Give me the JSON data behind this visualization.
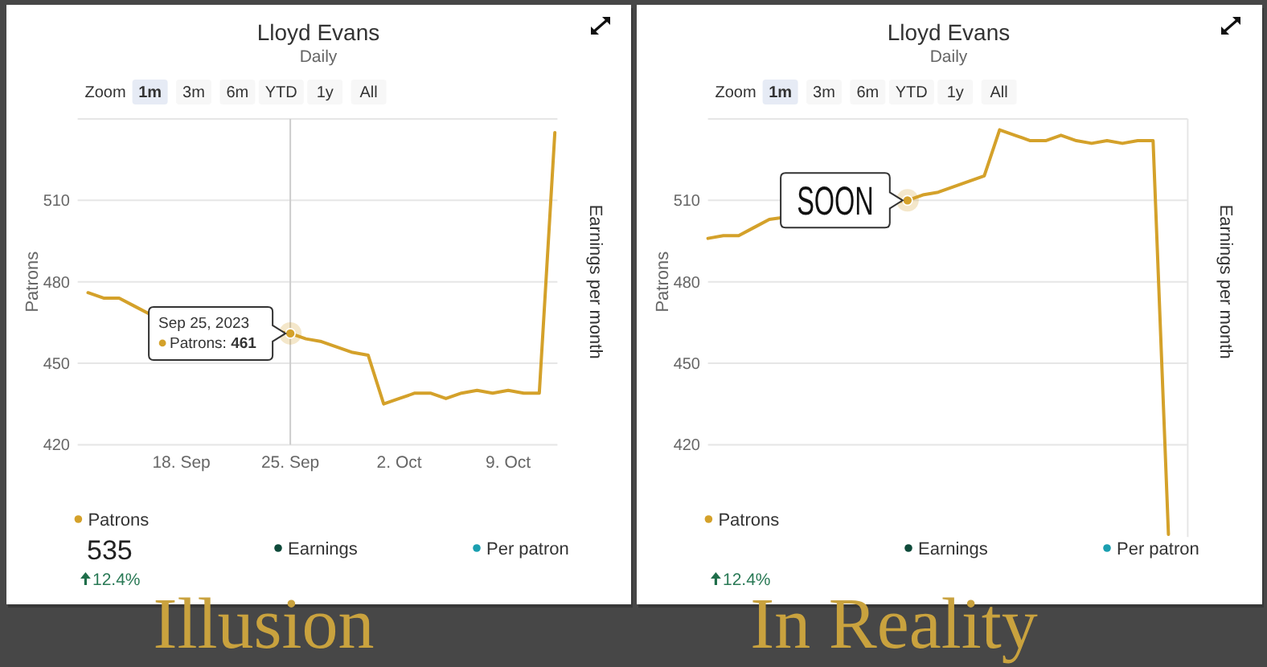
{
  "chart_data": [
    {
      "type": "line",
      "title": "Lloyd Evans",
      "subtitle": "Daily",
      "ylabel": "Patrons",
      "y2label": "Earnings per month",
      "x": [
        "2023-09-12",
        "2023-09-13",
        "2023-09-14",
        "2023-09-15",
        "2023-09-16",
        "2023-09-17",
        "2023-09-18",
        "2023-09-19",
        "2023-09-20",
        "2023-09-21",
        "2023-09-22",
        "2023-09-23",
        "2023-09-24",
        "2023-09-25",
        "2023-09-26",
        "2023-09-27",
        "2023-09-28",
        "2023-09-29",
        "2023-09-30",
        "2023-10-01",
        "2023-10-02",
        "2023-10-03",
        "2023-10-04",
        "2023-10-05",
        "2023-10-06",
        "2023-10-07",
        "2023-10-08",
        "2023-10-09",
        "2023-10-10",
        "2023-10-11",
        "2023-10-12"
      ],
      "series": [
        {
          "name": "Patrons",
          "color": "#d4a12a",
          "values": [
            476,
            474,
            474,
            471,
            468,
            null,
            null,
            null,
            null,
            null,
            null,
            null,
            null,
            461,
            459,
            458,
            456,
            454,
            453,
            435,
            437,
            439,
            439,
            437,
            439,
            440,
            439,
            440,
            439,
            439,
            535
          ]
        },
        {
          "name": "Earnings",
          "color": "#0e4a3a",
          "values": [
            null,
            null,
            null,
            null,
            null,
            null,
            null,
            null,
            null,
            null,
            null,
            null,
            null,
            null,
            null,
            null,
            null,
            null,
            null,
            null,
            null,
            null,
            null,
            null,
            null,
            null,
            null,
            null,
            null,
            null,
            null
          ]
        },
        {
          "name": "Per patron",
          "color": "#1b9fb0",
          "values": [
            null,
            null,
            null,
            null,
            null,
            null,
            null,
            null,
            null,
            null,
            null,
            null,
            null,
            null,
            null,
            null,
            null,
            null,
            null,
            null,
            null,
            null,
            null,
            null,
            null,
            null,
            null,
            null,
            null,
            null,
            null
          ]
        }
      ],
      "xlim": [
        "2023-09-11T08:00",
        "2023-10-12T04:00"
      ],
      "xticks": [
        {
          "value": "2023-09-18",
          "label": "18. Sep"
        },
        {
          "value": "2023-09-25",
          "label": "25. Sep"
        },
        {
          "value": "2023-10-02",
          "label": "2. Oct"
        },
        {
          "value": "2023-10-09",
          "label": "9. Oct"
        }
      ],
      "ylim": [
        420,
        540
      ],
      "yticks": [
        420,
        450,
        480,
        510,
        {
          "value": 540,
          "label": null
        }
      ],
      "grid": "y",
      "legend": "bottom",
      "ref_lines": [
        {
          "axis": "x",
          "value": "2023-09-25",
          "color": "#cccccc"
        }
      ],
      "annotations": [
        "Illusion",
        "Zoom",
        "1m",
        "3m",
        "6m",
        "YTD",
        "1y",
        "All",
        "535",
        "12.4%",
        {
          "text": "Sep 25, 2023",
          "x": "2023-09-25",
          "y": 461
        },
        {
          "text": "Patrons: 461",
          "x": "2023-09-25",
          "y": 461
        }
      ]
    },
    {
      "type": "line",
      "title": "Lloyd Evans",
      "subtitle": "Daily",
      "ylabel": "Patrons",
      "y2label": "Earnings per month",
      "categories": [
        null,
        null,
        null,
        null,
        null,
        null,
        null,
        null,
        null,
        null,
        null,
        null,
        null,
        null,
        null,
        null,
        null,
        null,
        null,
        null,
        null,
        null,
        null,
        null,
        null,
        null,
        null,
        null,
        null,
        null,
        null
      ],
      "series": [
        {
          "name": "Patrons",
          "color": "#d4a12a",
          "values": [
            496,
            497,
            497,
            500,
            503,
            null,
            null,
            null,
            null,
            null,
            null,
            null,
            null,
            510,
            512,
            513,
            515,
            517,
            519,
            536,
            534,
            532,
            532,
            534,
            532,
            531,
            532,
            531,
            532,
            532,
            387
          ],
          "value_labels": [
            null,
            null,
            null,
            null,
            null,
            null,
            null,
            null,
            null,
            null,
            null,
            null,
            null,
            "SOON",
            null,
            null,
            null,
            null,
            null,
            null,
            null,
            null,
            null,
            null,
            null,
            null,
            null,
            null,
            null,
            null,
            null
          ]
        },
        {
          "name": "Earnings",
          "color": "#0e4a3a",
          "values": [
            null,
            null,
            null,
            null,
            null,
            null,
            null,
            null,
            null,
            null,
            null,
            null,
            null,
            null,
            null,
            null,
            null,
            null,
            null,
            null,
            null,
            null,
            null,
            null,
            null,
            null,
            null,
            null,
            null,
            null,
            null
          ]
        },
        {
          "name": "Per patron",
          "color": "#1b9fb0",
          "values": [
            null,
            null,
            null,
            null,
            null,
            null,
            null,
            null,
            null,
            null,
            null,
            null,
            null,
            null,
            null,
            null,
            null,
            null,
            null,
            null,
            null,
            null,
            null,
            null,
            null,
            null,
            null,
            null,
            null,
            null,
            null
          ]
        }
      ],
      "ylim": [
        386,
        540
      ],
      "yticks": [
        420,
        450,
        480,
        510,
        {
          "value": 540,
          "label": null
        }
      ],
      "grid": "y",
      "legend": "bottom",
      "tick_labels": "y",
      "annotations": [
        "In Reality",
        "Zoom",
        "1m",
        "3m",
        "6m",
        "YTD",
        "1y",
        "All",
        "12.4%"
      ]
    }
  ]
}
